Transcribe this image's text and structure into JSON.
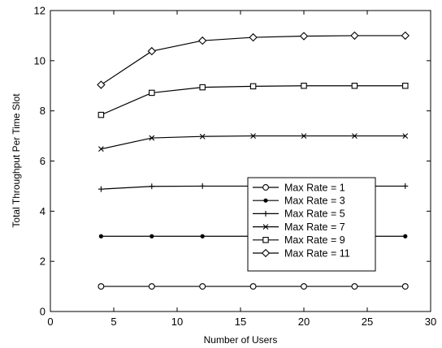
{
  "chart_data": {
    "type": "line",
    "title": "",
    "xlabel": "Number of Users",
    "ylabel": "Total Throughput Per Time Slot",
    "xlim": [
      0,
      30
    ],
    "ylim": [
      0,
      12
    ],
    "x_ticks": [
      "0",
      "5",
      "10",
      "15",
      "20",
      "25",
      "30"
    ],
    "y_ticks": [
      "0",
      "2",
      "4",
      "6",
      "8",
      "10",
      "12"
    ],
    "grid": false,
    "legend_position": "lower-right",
    "x": [
      4,
      8,
      12,
      16,
      20,
      24,
      28
    ],
    "series": [
      {
        "name": "Max Rate = 1",
        "marker": "circle-open",
        "values": [
          1.0,
          1.0,
          1.0,
          1.0,
          1.0,
          1.0,
          1.0
        ]
      },
      {
        "name": "Max Rate = 3",
        "marker": "dot-filled",
        "values": [
          3.0,
          3.0,
          3.0,
          3.0,
          3.0,
          3.0,
          3.0
        ]
      },
      {
        "name": "Max Rate = 5",
        "marker": "plus",
        "values": [
          4.88,
          4.99,
          5.0,
          5.0,
          5.0,
          5.0,
          5.0
        ]
      },
      {
        "name": "Max Rate = 7",
        "marker": "x",
        "values": [
          6.48,
          6.92,
          6.98,
          7.0,
          7.0,
          7.0,
          7.0
        ]
      },
      {
        "name": "Max Rate = 9",
        "marker": "square-open",
        "values": [
          7.84,
          8.72,
          8.94,
          8.98,
          9.0,
          9.0,
          9.0
        ]
      },
      {
        "name": "Max Rate = 11",
        "marker": "diamond-open",
        "values": [
          9.04,
          10.38,
          10.8,
          10.93,
          10.98,
          11.0,
          11.0
        ]
      }
    ]
  }
}
